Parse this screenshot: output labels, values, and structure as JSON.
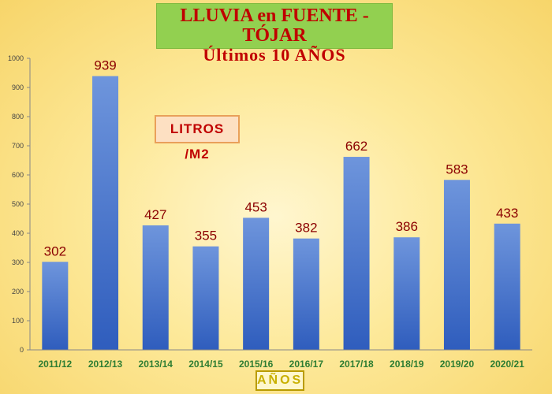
{
  "chart_data": {
    "type": "bar",
    "title_line1": "LLUVIA en FUENTE - TÓJAR",
    "title_line2": "Últimos  10  AÑOS",
    "unit_label": "LITROS /M2",
    "xlabel": "AÑOS",
    "categories": [
      "2011/12",
      "2012/13",
      "2013/14",
      "2014/15",
      "2015/16",
      "2016/17",
      "2017/18",
      "2018/19",
      "2019/20",
      "2020/21"
    ],
    "values": [
      302,
      939,
      427,
      355,
      453,
      382,
      662,
      386,
      583,
      433
    ],
    "ylim": [
      0,
      1000
    ],
    "yticks": [
      0,
      100,
      200,
      300,
      400,
      500,
      600,
      700,
      800,
      900,
      1000
    ],
    "grid": false,
    "colors": {
      "bar_top": "#6e95dc",
      "bar_bottom": "#2f5dbd",
      "title_bg": "#92d050",
      "title_text": "#c00000"
    }
  }
}
